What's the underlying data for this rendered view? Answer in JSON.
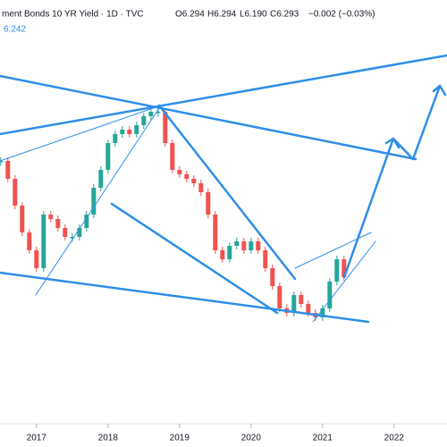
{
  "chart_data": {
    "type": "candlestick",
    "title": "ment Bonds 10 YR Yield · 1D · TVC",
    "annotations": [
      "O6.294",
      "H6.294",
      "L6.190",
      "C6.293",
      "−0.002 (−0.03%)",
      "6.242"
    ],
    "x": [
      2016.5,
      2016.6,
      2016.7,
      2016.8,
      2016.9,
      2017.0,
      2017.1,
      2017.2,
      2017.3,
      2017.4,
      2017.5,
      2017.6,
      2017.7,
      2017.8,
      2017.9,
      2018.0,
      2018.1,
      2018.2,
      2018.3,
      2018.4,
      2018.5,
      2018.6,
      2018.7,
      2018.8,
      2018.9,
      2019.0,
      2019.1,
      2019.2,
      2019.3,
      2019.4,
      2019.5,
      2019.6,
      2019.7,
      2019.8,
      2019.9,
      2020.0,
      2020.1,
      2020.2,
      2020.3,
      2020.4,
      2020.5,
      2020.6,
      2020.7,
      2020.8,
      2020.9,
      2021.0,
      2021.1,
      2021.2,
      2021.3
    ],
    "values": [
      7.6,
      7.4,
      7.1,
      6.8,
      6.6,
      6.4,
      7.0,
      6.95,
      6.85,
      6.75,
      6.75,
      6.85,
      7.0,
      7.3,
      7.5,
      7.8,
      7.9,
      7.95,
      7.9,
      8.0,
      8.1,
      8.15,
      8.15,
      7.8,
      7.5,
      7.45,
      7.4,
      7.35,
      7.25,
      7.0,
      6.6,
      6.5,
      6.65,
      6.7,
      6.6,
      6.7,
      6.6,
      6.4,
      6.2,
      5.95,
      5.9,
      6.1,
      6.0,
      5.9,
      5.85,
      5.95,
      6.25,
      6.5,
      6.3
    ],
    "up_color": "#26a69a",
    "down_color": "#ef5350",
    "xlim": [
      2016.49,
      2022.74
    ],
    "ylim": [
      4.7,
      9.4
    ],
    "xticks": [
      2017,
      2018,
      2019,
      2020,
      2021,
      2022
    ]
  }
}
